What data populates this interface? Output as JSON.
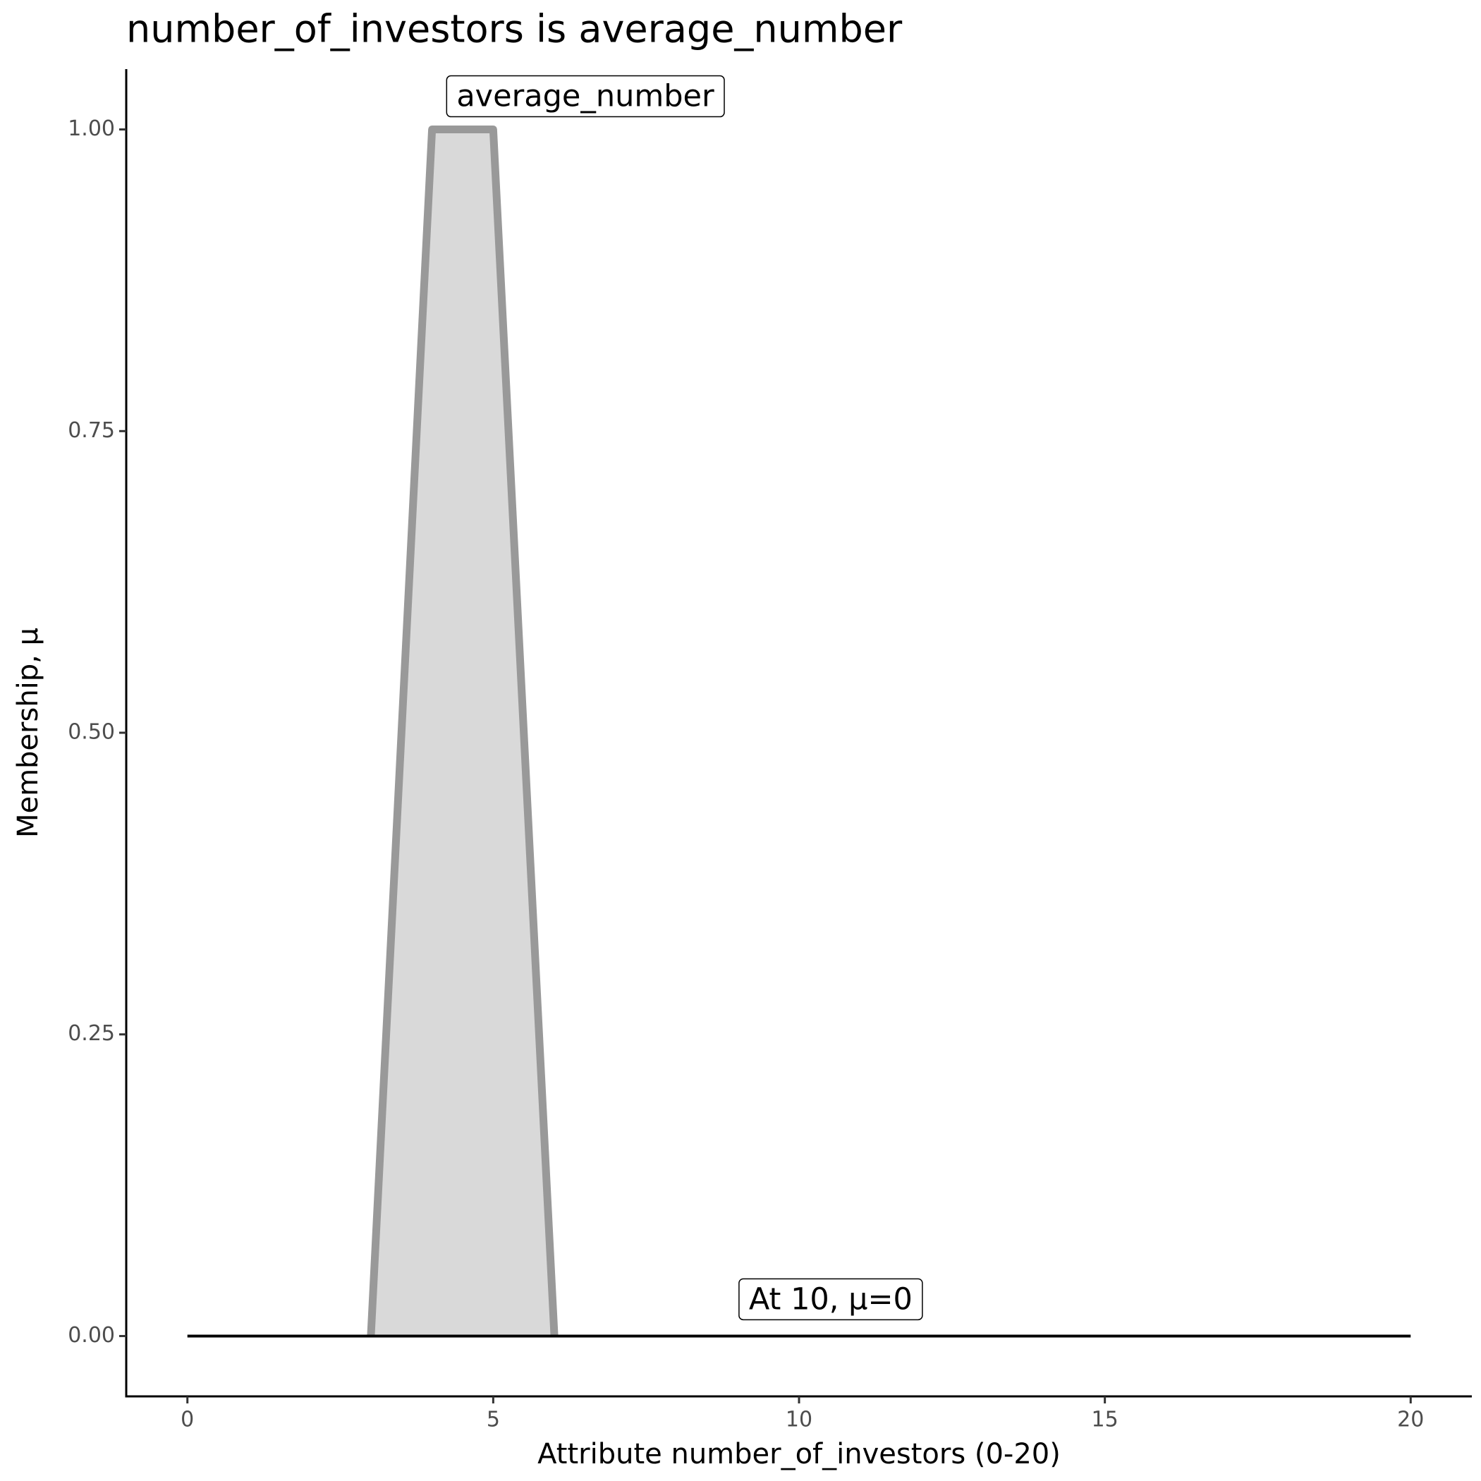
{
  "chart_data": {
    "type": "area",
    "title": "number_of_investors is average_number",
    "x_label": "Attribute number_of_investors (0-20)",
    "y_label": "Membership, μ",
    "xlim": [
      -1,
      21
    ],
    "ylim": [
      -0.05,
      1.05
    ],
    "xticks": [
      0,
      5,
      10,
      15,
      20
    ],
    "yticks": [
      {
        "value": 0,
        "label": "0.00"
      },
      {
        "value": 0.25,
        "label": "0.25"
      },
      {
        "value": 0.5,
        "label": "0.50"
      },
      {
        "value": 0.75,
        "label": "0.75"
      },
      {
        "value": 1,
        "label": "1.00"
      }
    ],
    "series": [
      {
        "name": "average_number",
        "color": "#999999",
        "fill": "#d9d9d9",
        "x": [
          3,
          4,
          5,
          6
        ],
        "values": [
          0,
          1,
          1,
          0
        ]
      },
      {
        "color": "#000000",
        "x": [
          0,
          20
        ],
        "values": [
          0,
          0
        ]
      }
    ],
    "annotations": [
      "At 10, μ=0"
    ]
  }
}
